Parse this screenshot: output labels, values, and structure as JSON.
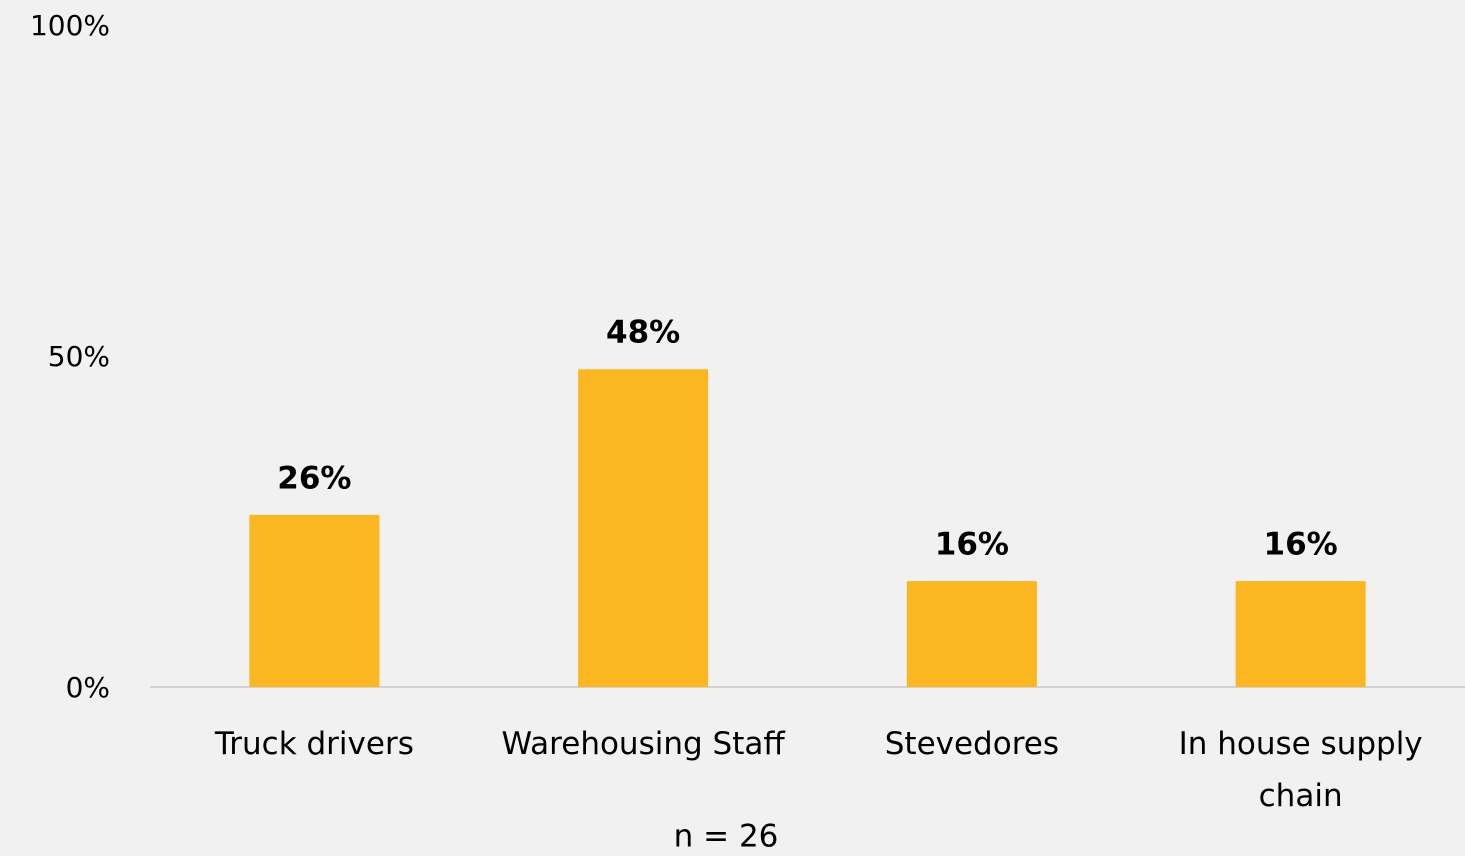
{
  "chart_data": {
    "type": "bar",
    "categories": [
      "Truck drivers",
      "Warehousing Staff",
      "Stevedores",
      "In house supply chain"
    ],
    "values": [
      26,
      48,
      16,
      16
    ],
    "value_labels": [
      "26%",
      "48%",
      "16%",
      "16%"
    ],
    "color": "#fbb721",
    "ylim": [
      0,
      100
    ],
    "yticks": [
      {
        "value": 0,
        "label": "0%"
      },
      {
        "value": 50,
        "label": "50%"
      },
      {
        "value": 100,
        "label": "100%"
      }
    ],
    "grid": false,
    "annotation": "n = 26"
  }
}
